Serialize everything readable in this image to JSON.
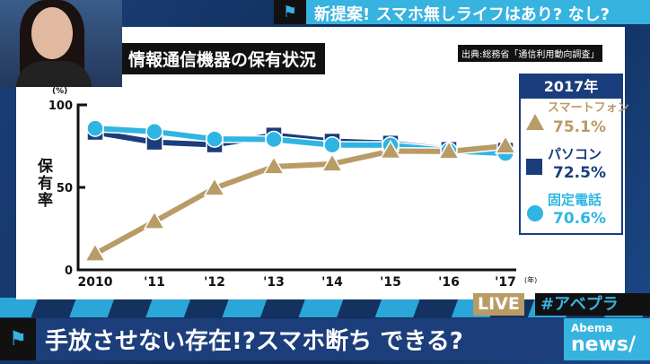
{
  "header": {
    "flag_icon": "flag-icon",
    "title": "新提案! スマホ無しライフはあり? なし?"
  },
  "chart_title": "情報通信機器の保有状況",
  "source": "出典:総務省「通信利用動向調査」",
  "legend": {
    "year": "2017年",
    "items": [
      {
        "name": "スマートフォン",
        "value": "75.1%",
        "marker": "triangle",
        "color": "#b99b66"
      },
      {
        "name": "パソコン",
        "value": "72.5%",
        "marker": "square",
        "color": "#1a3d7c"
      },
      {
        "name": "固定電話",
        "value": "70.6%",
        "marker": "circle",
        "color": "#2fb5e3"
      }
    ]
  },
  "chart_data": {
    "type": "line",
    "title": "情報通信機器の保有状況",
    "xlabel": "(年)",
    "ylabel": "保有率",
    "yunit": "(%)",
    "ylim": [
      0,
      100
    ],
    "yticks": [
      0,
      50,
      100
    ],
    "categories": [
      "2010",
      "'11",
      "'12",
      "'13",
      "'14",
      "'15",
      "'16",
      "'17"
    ],
    "series": [
      {
        "name": "パソコン",
        "color": "#1a3d7c",
        "marker": "square",
        "values": [
          83.4,
          77.4,
          75.8,
          81.7,
          78.0,
          76.8,
          73.0,
          72.5
        ]
      },
      {
        "name": "固定電話",
        "color": "#2fb5e3",
        "marker": "circle",
        "values": [
          85.8,
          83.8,
          79.3,
          79.1,
          75.7,
          75.6,
          72.2,
          70.6
        ]
      },
      {
        "name": "スマートフォン",
        "color": "#b99b66",
        "marker": "triangle",
        "values": [
          9.7,
          29.3,
          49.5,
          62.6,
          64.2,
          72.0,
          71.8,
          75.1
        ]
      }
    ]
  },
  "badges": {
    "live": "LIVE",
    "hashtag": "#アベプラ"
  },
  "lower_third": {
    "text": "手放させない存在!?スマホ断ち できる?"
  },
  "logo": {
    "line1": "Abema",
    "line2": "news/"
  }
}
